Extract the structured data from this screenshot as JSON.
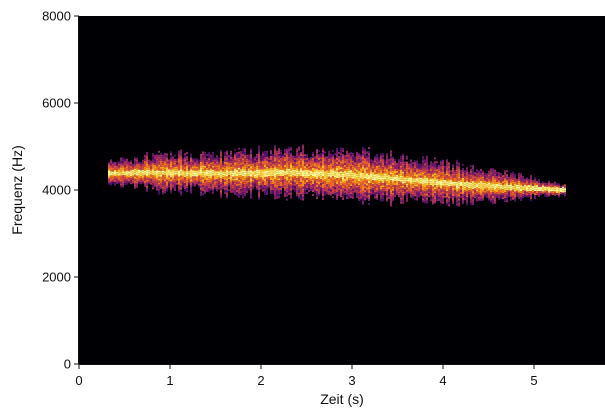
{
  "chart_data": {
    "type": "heatmap",
    "title": "",
    "xlabel": "Zeit (s)",
    "ylabel": "Frequenz (Hz)",
    "xlim": [
      0,
      5.78
    ],
    "ylim": [
      0,
      8000
    ],
    "x_ticks": [
      0,
      1,
      2,
      3,
      4,
      5
    ],
    "y_ticks": [
      0,
      2000,
      4000,
      6000,
      8000
    ],
    "grid": false,
    "colormap": "inferno",
    "background_color": "#000004",
    "signal": {
      "description_points": [
        {
          "t": 0.3,
          "f_center": 4400,
          "half_width": 250
        },
        {
          "t": 0.8,
          "f_center": 4420,
          "half_width": 380
        },
        {
          "t": 1.5,
          "f_center": 4400,
          "half_width": 450
        },
        {
          "t": 2.3,
          "f_center": 4420,
          "half_width": 500
        },
        {
          "t": 3.0,
          "f_center": 4360,
          "half_width": 560
        },
        {
          "t": 3.6,
          "f_center": 4260,
          "half_width": 520
        },
        {
          "t": 4.2,
          "f_center": 4150,
          "half_width": 420
        },
        {
          "t": 4.8,
          "f_center": 4080,
          "half_width": 260
        },
        {
          "t": 5.35,
          "f_center": 4020,
          "half_width": 120
        }
      ]
    }
  }
}
